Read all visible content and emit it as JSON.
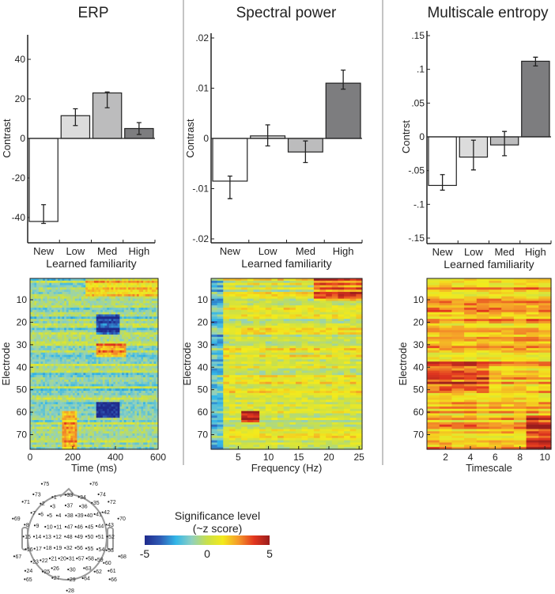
{
  "chart_data": [
    {
      "type": "bar",
      "title": "ERP",
      "categories": [
        "New",
        "Low",
        "Med",
        "High"
      ],
      "values": [
        -42,
        11.5,
        23,
        5
      ],
      "error_low": [
        -43,
        6.5,
        15.5,
        2
      ],
      "error_high": [
        -33.5,
        15,
        23.5,
        8
      ],
      "bar_colors": [
        "#ffffff",
        "#dcdcdc",
        "#bcbcbd",
        "#7d7d7f"
      ],
      "xlabel": "Learned familiarity",
      "ylabel": "Contrast",
      "ylim": [
        -50,
        50
      ],
      "yticks": [
        -40,
        -20,
        0,
        20,
        40
      ],
      "ytick_labels": [
        "-40",
        "-20",
        "0",
        "20",
        "40"
      ]
    },
    {
      "type": "bar",
      "title": "Spectral power",
      "categories": [
        "New",
        "Low",
        "Med",
        "High"
      ],
      "values": [
        -0.0085,
        0.0005,
        -0.0027,
        0.011
      ],
      "error_low": [
        -0.012,
        -0.0015,
        -0.0048,
        0.0098
      ],
      "error_high": [
        -0.0075,
        0.0027,
        -0.0005,
        0.0136
      ],
      "bar_colors": [
        "#ffffff",
        "#dcdcdc",
        "#bcbcbd",
        "#7d7d7f"
      ],
      "xlabel": "Learned familiarity",
      "ylabel": "Contrast",
      "ylim": [
        -0.02,
        0.02
      ],
      "yticks": [
        -0.02,
        -0.01,
        0,
        0.01,
        0.02
      ],
      "ytick_labels": [
        "-.02",
        "-.01",
        "0",
        ".01",
        ".02"
      ]
    },
    {
      "type": "bar",
      "title": "Multiscale entropy",
      "categories": [
        "New",
        "Low",
        "Med",
        "High"
      ],
      "values": [
        -0.072,
        -0.03,
        -0.012,
        0.112
      ],
      "error_low": [
        -0.079,
        -0.049,
        -0.028,
        0.105
      ],
      "error_high": [
        -0.056,
        -0.005,
        0.008,
        0.118
      ],
      "bar_colors": [
        "#ffffff",
        "#dcdcdc",
        "#bcbcbd",
        "#7d7d7f"
      ],
      "xlabel": "Learned familiarity",
      "ylabel": "Contrst",
      "ylim": [
        -0.16,
        0.15
      ],
      "yticks": [
        -0.15,
        -0.1,
        -0.05,
        0,
        0.05,
        0.1,
        0.15
      ],
      "ytick_labels": [
        "-.15",
        "-.1",
        "-.05",
        "0",
        ".05",
        ".1",
        ".15"
      ]
    },
    {
      "type": "heatmap",
      "xlabel": "Time (ms)",
      "ylabel": "Electrode",
      "xlim": [
        0,
        600
      ],
      "xticks": [
        0,
        200,
        400,
        600
      ],
      "ylim": [
        1,
        76
      ],
      "yticks": [
        10,
        20,
        30,
        40,
        50,
        60,
        70
      ]
    },
    {
      "type": "heatmap",
      "xlabel": "Frequency (Hz)",
      "ylabel": "Electrode",
      "xlim": [
        0.5,
        25.5
      ],
      "xticks": [
        5,
        10,
        15,
        20,
        25
      ],
      "ylim": [
        1,
        76
      ],
      "yticks": [
        10,
        20,
        30,
        40,
        50,
        60,
        70
      ]
    },
    {
      "type": "heatmap",
      "xlabel": "Timescale",
      "ylabel": "Electrode",
      "xlim": [
        0.5,
        10.5
      ],
      "xticks": [
        2,
        4,
        6,
        8,
        10
      ],
      "ylim": [
        1,
        76
      ],
      "yticks": [
        10,
        20,
        30,
        40,
        50,
        60,
        70
      ]
    }
  ],
  "colorbar": {
    "title": "Significance level",
    "subtitle": "(~z score)",
    "min": -5,
    "max": 5,
    "tick_labels": [
      "-5",
      "0",
      "5"
    ],
    "colormap": [
      "#1f2a8c",
      "#2f5bb5",
      "#33b6e8",
      "#8fd0c0",
      "#c9e04a",
      "#f3ea1c",
      "#f59a2a",
      "#e2361f",
      "#9a1d1d"
    ]
  },
  "electrode_map": {
    "labels": [
      "75",
      "76",
      "73",
      "1",
      "33",
      "34",
      "74",
      "71",
      "2",
      "3",
      "37",
      "36",
      "35",
      "72",
      "7",
      "6",
      "5",
      "4",
      "38",
      "39",
      "40",
      "41",
      "42",
      "69",
      "70",
      "8",
      "9",
      "10",
      "11",
      "47",
      "46",
      "45",
      "44",
      "43",
      "15",
      "14",
      "13",
      "12",
      "48",
      "49",
      "50",
      "51",
      "52",
      "16",
      "17",
      "18",
      "19",
      "32",
      "56",
      "55",
      "54",
      "53",
      "67",
      "68",
      "23",
      "22",
      "21",
      "20",
      "31",
      "57",
      "58",
      "59",
      "60",
      "24",
      "25",
      "26",
      "30",
      "63",
      "62",
      "61",
      "65",
      "27",
      "29",
      "64",
      "66",
      "28"
    ]
  }
}
